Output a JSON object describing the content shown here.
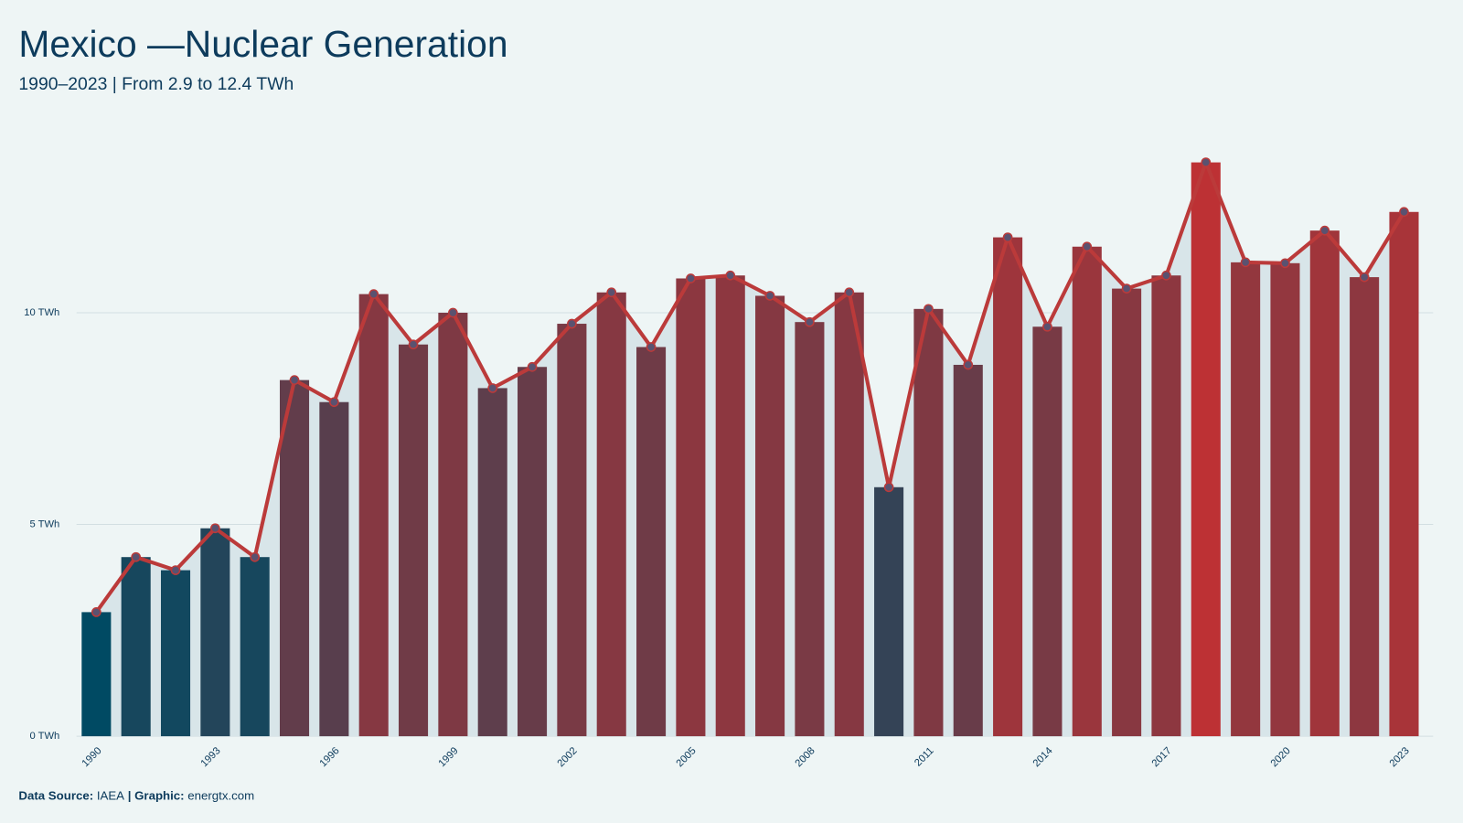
{
  "chart_data": {
    "type": "bar-line",
    "title": "Mexico —Nuclear Generation",
    "subtitle": "1990–2023 | From 2.9 to 12.4 TWh",
    "x": [
      1990,
      1991,
      1992,
      1993,
      1994,
      1995,
      1996,
      1997,
      1998,
      1999,
      2000,
      2001,
      2002,
      2003,
      2004,
      2005,
      2006,
      2007,
      2008,
      2009,
      2010,
      2011,
      2012,
      2013,
      2014,
      2015,
      2016,
      2017,
      2018,
      2019,
      2020,
      2021,
      2022,
      2023
    ],
    "values": [
      2.93,
      4.23,
      3.92,
      4.91,
      4.23,
      8.41,
      7.89,
      10.44,
      9.25,
      10.0,
      8.22,
      8.72,
      9.74,
      10.48,
      9.19,
      10.81,
      10.88,
      10.4,
      9.78,
      10.48,
      5.88,
      10.09,
      8.77,
      11.78,
      9.67,
      11.56,
      10.57,
      10.88,
      13.55,
      11.19,
      11.17,
      11.94,
      10.84,
      12.38
    ],
    "xlim": [
      1989.5,
      2023.5
    ],
    "xticks": [
      1990,
      1993,
      1996,
      1999,
      2002,
      2005,
      2008,
      2011,
      2014,
      2017,
      2020,
      2023
    ],
    "ylim": [
      0,
      14.3
    ],
    "yticks": [
      {
        "value": 0,
        "label": "0 TWh"
      },
      {
        "value": 5,
        "label": "5 TWh"
      },
      {
        "value": 10,
        "label": "10 TWh"
      }
    ],
    "grid": true,
    "colors": {
      "low": "#004a63",
      "high": "#bd3134",
      "line": "#bb3a3a",
      "point": "#5a5270",
      "area": "#d8e5e9"
    },
    "source_label": "Data Source:",
    "source": "IAEA",
    "graphic_label": "| Graphic:",
    "graphic": "energtx.com"
  }
}
